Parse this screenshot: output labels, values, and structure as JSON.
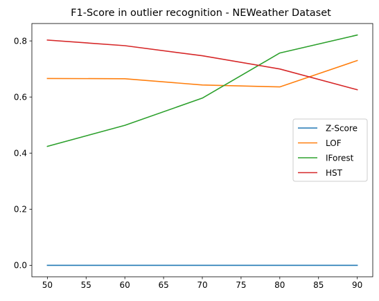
{
  "chart_data": {
    "type": "line",
    "title": "F1-Score in outlier recognition - NEWeather Dataset",
    "xlabel": "",
    "ylabel": "",
    "x": [
      50,
      60,
      70,
      80,
      90
    ],
    "xticks": [
      50,
      55,
      60,
      65,
      70,
      75,
      80,
      85,
      90
    ],
    "yticks": [
      0.0,
      0.2,
      0.4,
      0.6,
      0.8
    ],
    "xlim": [
      48,
      92
    ],
    "ylim": [
      -0.041,
      0.862
    ],
    "grid": false,
    "legend_position": "center-right",
    "series": [
      {
        "name": "Z-Score",
        "color": "#1f77b4",
        "values": [
          0.0,
          0.0,
          0.0,
          0.0,
          0.0
        ]
      },
      {
        "name": "LOF",
        "color": "#ff7f0e",
        "values": [
          0.666,
          0.665,
          0.643,
          0.636,
          0.73
        ]
      },
      {
        "name": "IForest",
        "color": "#2ca02c",
        "values": [
          0.424,
          0.499,
          0.596,
          0.757,
          0.821
        ]
      },
      {
        "name": "HST",
        "color": "#d62728",
        "values": [
          0.803,
          0.783,
          0.747,
          0.7,
          0.626
        ]
      }
    ]
  }
}
